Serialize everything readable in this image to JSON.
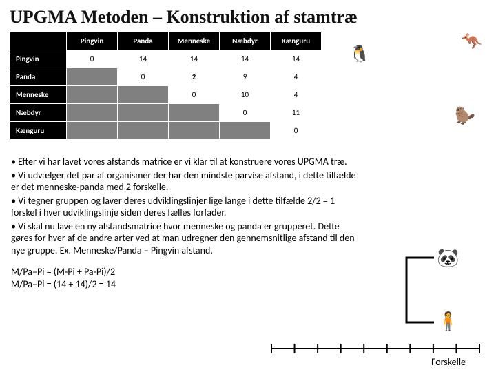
{
  "title": "UPGMA Metoden – Konstruktion af stamtræ",
  "matrix": {
    "headers": [
      "Pingvin",
      "Panda",
      "Menneske",
      "Næbdyr",
      "Kænguru"
    ],
    "rows": [
      {
        "label": "Pingvin",
        "cells": [
          {
            "v": "0"
          },
          {
            "v": "14"
          },
          {
            "v": "14"
          },
          {
            "v": "14"
          },
          {
            "v": "14"
          }
        ]
      },
      {
        "label": "Panda",
        "cells": [
          {
            "shade": true
          },
          {
            "v": "0"
          },
          {
            "v": "2",
            "hl": true
          },
          {
            "v": "9"
          },
          {
            "v": "4"
          }
        ]
      },
      {
        "label": "Menneske",
        "cells": [
          {
            "shade": true
          },
          {
            "shade": true
          },
          {
            "v": "0"
          },
          {
            "v": "10"
          },
          {
            "v": "4"
          }
        ]
      },
      {
        "label": "Næbdyr",
        "cells": [
          {
            "shade": true
          },
          {
            "shade": true
          },
          {
            "shade": true
          },
          {
            "v": "0"
          },
          {
            "v": "11"
          }
        ]
      },
      {
        "label": "Kænguru",
        "cells": [
          {
            "shade": true
          },
          {
            "shade": true
          },
          {
            "shade": true
          },
          {
            "shade": true
          },
          {
            "v": "0"
          }
        ]
      }
    ]
  },
  "bullets": [
    "• Efter vi har lavet vores afstands matrice er vi klar til at konstruere vores UPGMA træ.",
    "• Vi udvælger det par af organismer der har den mindste parvise afstand, i dette tilfælde er det menneske-panda med 2 forskelle.",
    "• Vi tegner gruppen og laver deres udviklingslinjer lige lange i dette tilfælde 2/2 = 1 forskel i hver udviklingslinje siden deres fælles forfader.",
    "• Vi skal nu lave en ny afstandsmatrice hvor menneske og panda er grupperet. Dette gøres for hver af de andre arter ved at man udregner den gennemsnitlige afstand til den nye gruppe. Ex. Menneske/Panda – Pingvin afstand."
  ],
  "formula": {
    "l1": "M/Pa–Pi = (M-Pi + Pa-Pi)/2",
    "l2": "M/Pa–Pi = (14 + 14)/2 = 14"
  },
  "axis": {
    "label": "Forskelle",
    "ticks": 10,
    "stroke": "#000000"
  },
  "imgs": {
    "penguin": "🐧",
    "kangaroo": "🦘",
    "platypus": "🦫",
    "panda": "🐼",
    "human": "🧍"
  },
  "colors": {
    "header_bg": "#000000",
    "shade": "#808080",
    "highlight": "#c00000",
    "bg": "#ffffff"
  }
}
